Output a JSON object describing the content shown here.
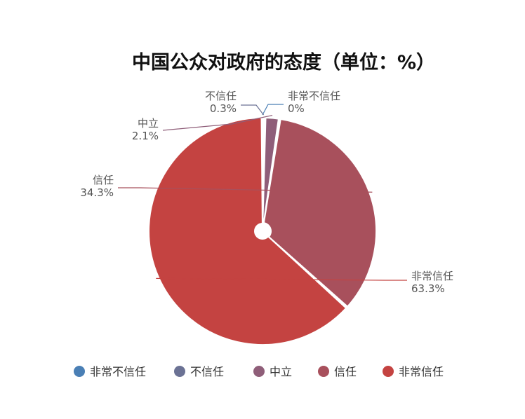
{
  "chart_data": {
    "type": "pie",
    "title": "中国公众对政府的态度（单位：%）",
    "categories": [
      "非常不信任",
      "不信任",
      "中立",
      "信任",
      "非常信任"
    ],
    "values": [
      0,
      0.3,
      2.1,
      34.3,
      63.3
    ],
    "value_labels": [
      "0%",
      "0.3%",
      "2.1%",
      "34.3%",
      "63.3%"
    ],
    "colors": [
      "#4a7fb5",
      "#6b7294",
      "#8f5e79",
      "#a8505c",
      "#c44341"
    ],
    "legend": "bottom"
  }
}
